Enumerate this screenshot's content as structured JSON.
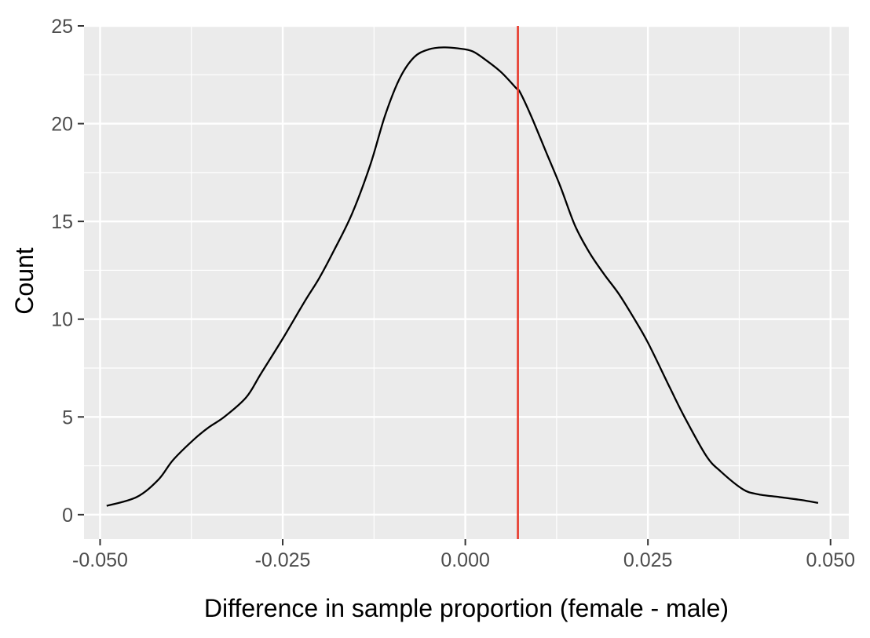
{
  "chart_data": {
    "type": "line",
    "xlabel": "Difference in sample proportion (female - male)",
    "ylabel": "Count",
    "xlim": [
      -0.0522,
      0.0525
    ],
    "ylim": [
      -1.25,
      25
    ],
    "x_ticks": [
      -0.05,
      -0.025,
      0,
      0.025,
      0.05
    ],
    "x_tick_labels": [
      "-0.050",
      "-0.025",
      "0.000",
      "0.025",
      "0.050"
    ],
    "y_ticks": [
      0,
      5,
      10,
      15,
      20,
      25
    ],
    "y_tick_labels": [
      "0",
      "5",
      "10",
      "15",
      "20",
      "25"
    ],
    "grid": true,
    "panel_color": "#ebebeb",
    "series": [
      {
        "color": "#000000",
        "x": [
          -0.0491,
          -0.045,
          -0.042,
          -0.04,
          -0.037,
          -0.035,
          -0.033,
          -0.03,
          -0.028,
          -0.025,
          -0.022,
          -0.02,
          -0.018,
          -0.0155,
          -0.013,
          -0.011,
          -0.009,
          -0.007,
          -0.005,
          -0.003,
          -0.001,
          0.001,
          0.003,
          0.005,
          0.007,
          0.0075,
          0.009,
          0.011,
          0.013,
          0.015,
          0.017,
          0.019,
          0.021,
          0.023,
          0.025,
          0.028,
          0.03,
          0.033,
          0.035,
          0.038,
          0.04,
          0.043,
          0.046,
          0.0483
        ],
        "y": [
          0.45,
          0.9,
          1.8,
          2.8,
          3.9,
          4.5,
          5.0,
          6.0,
          7.2,
          9.0,
          10.9,
          12.1,
          13.5,
          15.4,
          17.9,
          20.4,
          22.3,
          23.4,
          23.8,
          23.9,
          23.85,
          23.7,
          23.2,
          22.6,
          21.8,
          21.6,
          20.4,
          18.6,
          16.8,
          14.8,
          13.4,
          12.3,
          11.3,
          10.1,
          8.8,
          6.5,
          5.0,
          3.0,
          2.2,
          1.3,
          1.05,
          0.9,
          0.75,
          0.6
        ]
      }
    ],
    "reference_line": {
      "x": 0.0072,
      "color": "#e8382a"
    }
  }
}
